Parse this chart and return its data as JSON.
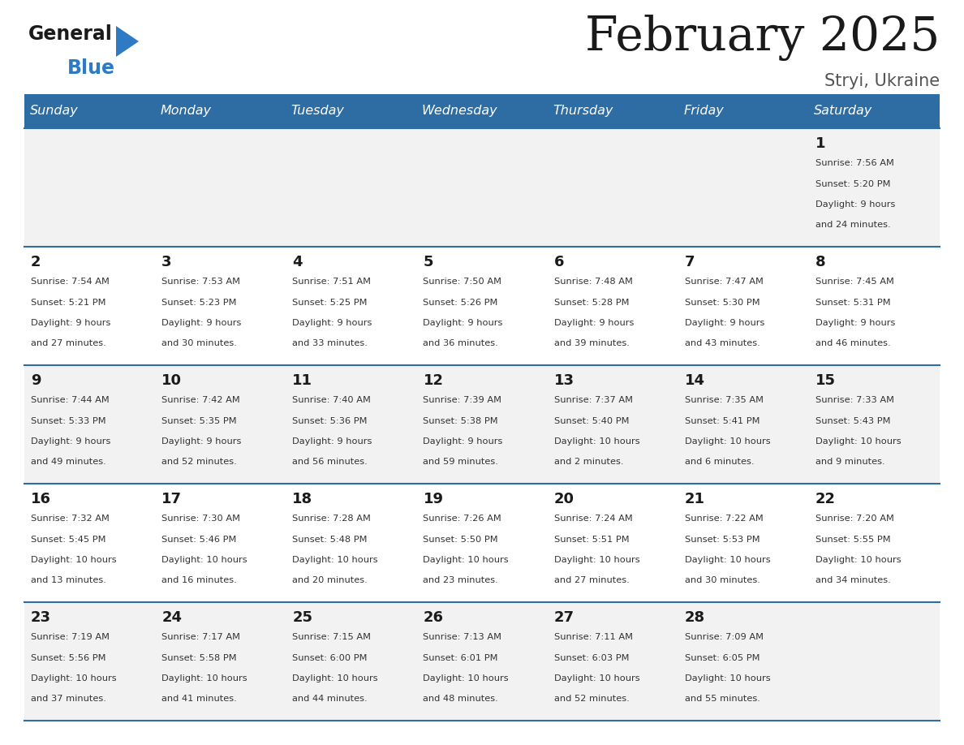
{
  "title": "February 2025",
  "subtitle": "Stryi, Ukraine",
  "header_bg": "#2E6DA4",
  "header_text_color": "#FFFFFF",
  "cell_bg_odd": "#F2F2F2",
  "cell_bg_even": "#FFFFFF",
  "row_line_color": "#2E6DA4",
  "text_color": "#333333",
  "days_of_week": [
    "Sunday",
    "Monday",
    "Tuesday",
    "Wednesday",
    "Thursday",
    "Friday",
    "Saturday"
  ],
  "calendar_data": [
    [
      {
        "day": "",
        "info": ""
      },
      {
        "day": "",
        "info": ""
      },
      {
        "day": "",
        "info": ""
      },
      {
        "day": "",
        "info": ""
      },
      {
        "day": "",
        "info": ""
      },
      {
        "day": "",
        "info": ""
      },
      {
        "day": "1",
        "info": "Sunrise: 7:56 AM\nSunset: 5:20 PM\nDaylight: 9 hours\nand 24 minutes."
      }
    ],
    [
      {
        "day": "2",
        "info": "Sunrise: 7:54 AM\nSunset: 5:21 PM\nDaylight: 9 hours\nand 27 minutes."
      },
      {
        "day": "3",
        "info": "Sunrise: 7:53 AM\nSunset: 5:23 PM\nDaylight: 9 hours\nand 30 minutes."
      },
      {
        "day": "4",
        "info": "Sunrise: 7:51 AM\nSunset: 5:25 PM\nDaylight: 9 hours\nand 33 minutes."
      },
      {
        "day": "5",
        "info": "Sunrise: 7:50 AM\nSunset: 5:26 PM\nDaylight: 9 hours\nand 36 minutes."
      },
      {
        "day": "6",
        "info": "Sunrise: 7:48 AM\nSunset: 5:28 PM\nDaylight: 9 hours\nand 39 minutes."
      },
      {
        "day": "7",
        "info": "Sunrise: 7:47 AM\nSunset: 5:30 PM\nDaylight: 9 hours\nand 43 minutes."
      },
      {
        "day": "8",
        "info": "Sunrise: 7:45 AM\nSunset: 5:31 PM\nDaylight: 9 hours\nand 46 minutes."
      }
    ],
    [
      {
        "day": "9",
        "info": "Sunrise: 7:44 AM\nSunset: 5:33 PM\nDaylight: 9 hours\nand 49 minutes."
      },
      {
        "day": "10",
        "info": "Sunrise: 7:42 AM\nSunset: 5:35 PM\nDaylight: 9 hours\nand 52 minutes."
      },
      {
        "day": "11",
        "info": "Sunrise: 7:40 AM\nSunset: 5:36 PM\nDaylight: 9 hours\nand 56 minutes."
      },
      {
        "day": "12",
        "info": "Sunrise: 7:39 AM\nSunset: 5:38 PM\nDaylight: 9 hours\nand 59 minutes."
      },
      {
        "day": "13",
        "info": "Sunrise: 7:37 AM\nSunset: 5:40 PM\nDaylight: 10 hours\nand 2 minutes."
      },
      {
        "day": "14",
        "info": "Sunrise: 7:35 AM\nSunset: 5:41 PM\nDaylight: 10 hours\nand 6 minutes."
      },
      {
        "day": "15",
        "info": "Sunrise: 7:33 AM\nSunset: 5:43 PM\nDaylight: 10 hours\nand 9 minutes."
      }
    ],
    [
      {
        "day": "16",
        "info": "Sunrise: 7:32 AM\nSunset: 5:45 PM\nDaylight: 10 hours\nand 13 minutes."
      },
      {
        "day": "17",
        "info": "Sunrise: 7:30 AM\nSunset: 5:46 PM\nDaylight: 10 hours\nand 16 minutes."
      },
      {
        "day": "18",
        "info": "Sunrise: 7:28 AM\nSunset: 5:48 PM\nDaylight: 10 hours\nand 20 minutes."
      },
      {
        "day": "19",
        "info": "Sunrise: 7:26 AM\nSunset: 5:50 PM\nDaylight: 10 hours\nand 23 minutes."
      },
      {
        "day": "20",
        "info": "Sunrise: 7:24 AM\nSunset: 5:51 PM\nDaylight: 10 hours\nand 27 minutes."
      },
      {
        "day": "21",
        "info": "Sunrise: 7:22 AM\nSunset: 5:53 PM\nDaylight: 10 hours\nand 30 minutes."
      },
      {
        "day": "22",
        "info": "Sunrise: 7:20 AM\nSunset: 5:55 PM\nDaylight: 10 hours\nand 34 minutes."
      }
    ],
    [
      {
        "day": "23",
        "info": "Sunrise: 7:19 AM\nSunset: 5:56 PM\nDaylight: 10 hours\nand 37 minutes."
      },
      {
        "day": "24",
        "info": "Sunrise: 7:17 AM\nSunset: 5:58 PM\nDaylight: 10 hours\nand 41 minutes."
      },
      {
        "day": "25",
        "info": "Sunrise: 7:15 AM\nSunset: 6:00 PM\nDaylight: 10 hours\nand 44 minutes."
      },
      {
        "day": "26",
        "info": "Sunrise: 7:13 AM\nSunset: 6:01 PM\nDaylight: 10 hours\nand 48 minutes."
      },
      {
        "day": "27",
        "info": "Sunrise: 7:11 AM\nSunset: 6:03 PM\nDaylight: 10 hours\nand 52 minutes."
      },
      {
        "day": "28",
        "info": "Sunrise: 7:09 AM\nSunset: 6:05 PM\nDaylight: 10 hours\nand 55 minutes."
      },
      {
        "day": "",
        "info": ""
      }
    ]
  ],
  "logo_general_color": "#1a1a1a",
  "logo_blue_color": "#2E7BC4",
  "logo_triangle_color": "#2E7BC4",
  "fig_width": 11.88,
  "fig_height": 9.18,
  "dpi": 100
}
